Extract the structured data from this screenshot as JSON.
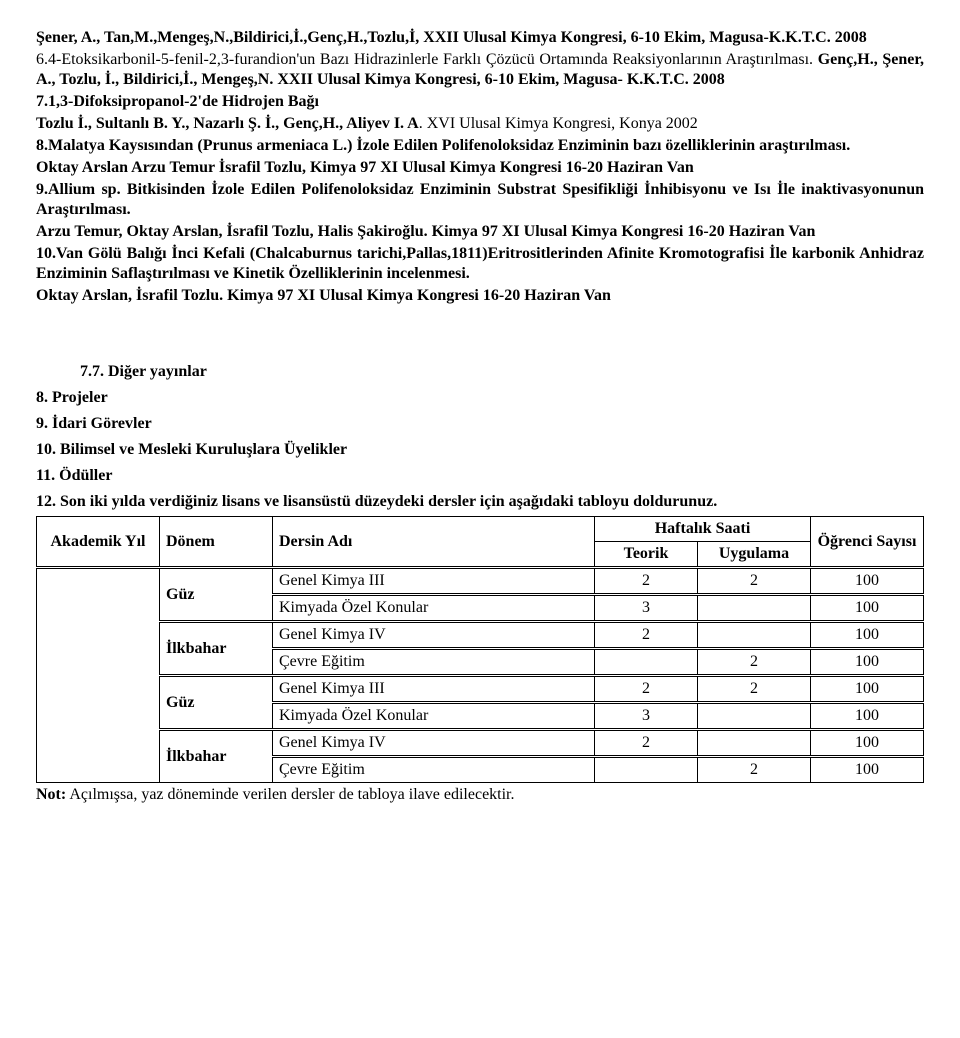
{
  "body_paragraphs": [
    {
      "runs": [
        {
          "t": "Şener, A., Tan,M.,Mengeş,N.,Bildirici,İ.,Genç,H.,Tozlu,İ, XXII Ulusal Kimya Kongresi, 6-10 Ekim, Magusa-K.K.T.C. 2008",
          "b": true
        }
      ]
    },
    {
      "runs": [
        {
          "t": "6.4-Etoksikarbonil-5-fenil-2,3-furandion'un Bazı Hidrazinlerle Farklı Çözücü Ortamında Reaksiyonlarının Araştırılması.",
          "b": false
        },
        {
          "t": " Genç,H., Şener, A., Tozlu, İ., Bildirici,İ., Mengeş,N. XXII Ulusal Kimya Kongresi, 6-10 Ekim, Magusa- K.K.T.C. 2008",
          "b": true
        }
      ]
    },
    {
      "runs": [
        {
          "t": "7.1,3-Difoksipropanol-2'de Hidrojen Bağı",
          "b": true
        }
      ]
    },
    {
      "runs": [
        {
          "t": "Tozlu İ., Sultanlı B. Y., Nazarlı Ş. İ., Genç,H., Aliyev I. A",
          "b": true
        },
        {
          "t": ". XVI Ulusal Kimya Kongresi, Konya 2002",
          "b": false
        }
      ]
    },
    {
      "runs": [
        {
          "t": "8.Malatya Kaysısından (Prunus armeniaca L.) İzole Edilen Polifenoloksidaz Enziminin bazı özelliklerinin araştırılması.",
          "b": true
        }
      ]
    },
    {
      "runs": [
        {
          "t": "Oktay Arslan Arzu Temur İsrafil Tozlu, Kimya 97 XI Ulusal Kimya Kongresi 16-20 Haziran Van",
          "b": true
        }
      ]
    },
    {
      "runs": [
        {
          "t": "9.Allium sp. Bitkisinden İzole Edilen Polifenoloksidaz Enziminin Substrat Spesifikliği İnhibisyonu ve Isı İle inaktivasyonunun Araştırılması.",
          "b": true
        }
      ]
    },
    {
      "runs": [
        {
          "t": "Arzu Temur, Oktay Arslan, İsrafil Tozlu, Halis Şakiroğlu.",
          "b": true
        },
        {
          "t": " Kimya 97 XI Ulusal Kimya Kongresi 16-20 Haziran Van",
          "b": true
        }
      ]
    },
    {
      "runs": [
        {
          "t": "10.Van Gölü Balığı İnci Kefali (Chalcaburnus tarichi,Pallas,1811)Eritrositlerinden Afinite Kromotografisi İle karbonik Anhidraz Enziminin Saflaştırılması ve Kinetik Özelliklerinin incelenmesi.",
          "b": true
        }
      ]
    },
    {
      "runs": [
        {
          "t": "Oktay Arslan, İsrafil Tozlu.",
          "b": true
        },
        {
          "t": " Kimya 97 XI Ulusal Kimya Kongresi 16-20 Haziran Van",
          "b": true
        }
      ]
    }
  ],
  "sections": {
    "s77": "7.7.  Diğer yayınlar",
    "s8": "8.   Projeler",
    "s9": "9.   İdari Görevler",
    "s10": "10.  Bilimsel ve Mesleki Kuruluşlara Üyelikler",
    "s11": "11.  Ödüller",
    "s12": "12.  Son iki yılda verdiğiniz lisans ve lisansüstü düzeydeki dersler için aşağıdaki tabloyu doldurunuz."
  },
  "table": {
    "headers": {
      "akademik": "Akademik Yıl",
      "donem": "Dönem",
      "ders": "Dersin Adı",
      "haftalik": "Haftalık Saati",
      "teorik": "Teorik",
      "uygulama": "Uygulama",
      "ogrenci": "Öğrenci Sayısı"
    },
    "groups": [
      {
        "donem": "Güz",
        "rows": [
          {
            "ders": "Genel Kimya III",
            "teorik": "2",
            "uygulama": "2",
            "sayi": "100"
          },
          {
            "ders": "Kimyada Özel Konular",
            "teorik": "3",
            "uygulama": "",
            "sayi": "100"
          }
        ]
      },
      {
        "donem": "İlkbahar",
        "rows": [
          {
            "ders": "Genel Kimya IV",
            "teorik": "2",
            "uygulama": "",
            "sayi": "100"
          },
          {
            "ders": "Çevre Eğitim",
            "teorik": "",
            "uygulama": "2",
            "sayi": "100"
          }
        ]
      },
      {
        "donem": "Güz",
        "rows": [
          {
            "ders": "Genel Kimya III",
            "teorik": "2",
            "uygulama": "2",
            "sayi": "100"
          },
          {
            "ders": "Kimyada Özel Konular",
            "teorik": "3",
            "uygulama": "",
            "sayi": "100"
          }
        ]
      },
      {
        "donem": "İlkbahar",
        "rows": [
          {
            "ders": "Genel Kimya IV",
            "teorik": "2",
            "uygulama": "",
            "sayi": "100"
          },
          {
            "ders": "Çevre Eğitim",
            "teorik": "",
            "uygulama": "2",
            "sayi": "100"
          }
        ]
      }
    ]
  },
  "note_label": "Not:",
  "note_text": " Açılmışsa, yaz döneminde verilen dersler de tabloya ilave edilecektir."
}
